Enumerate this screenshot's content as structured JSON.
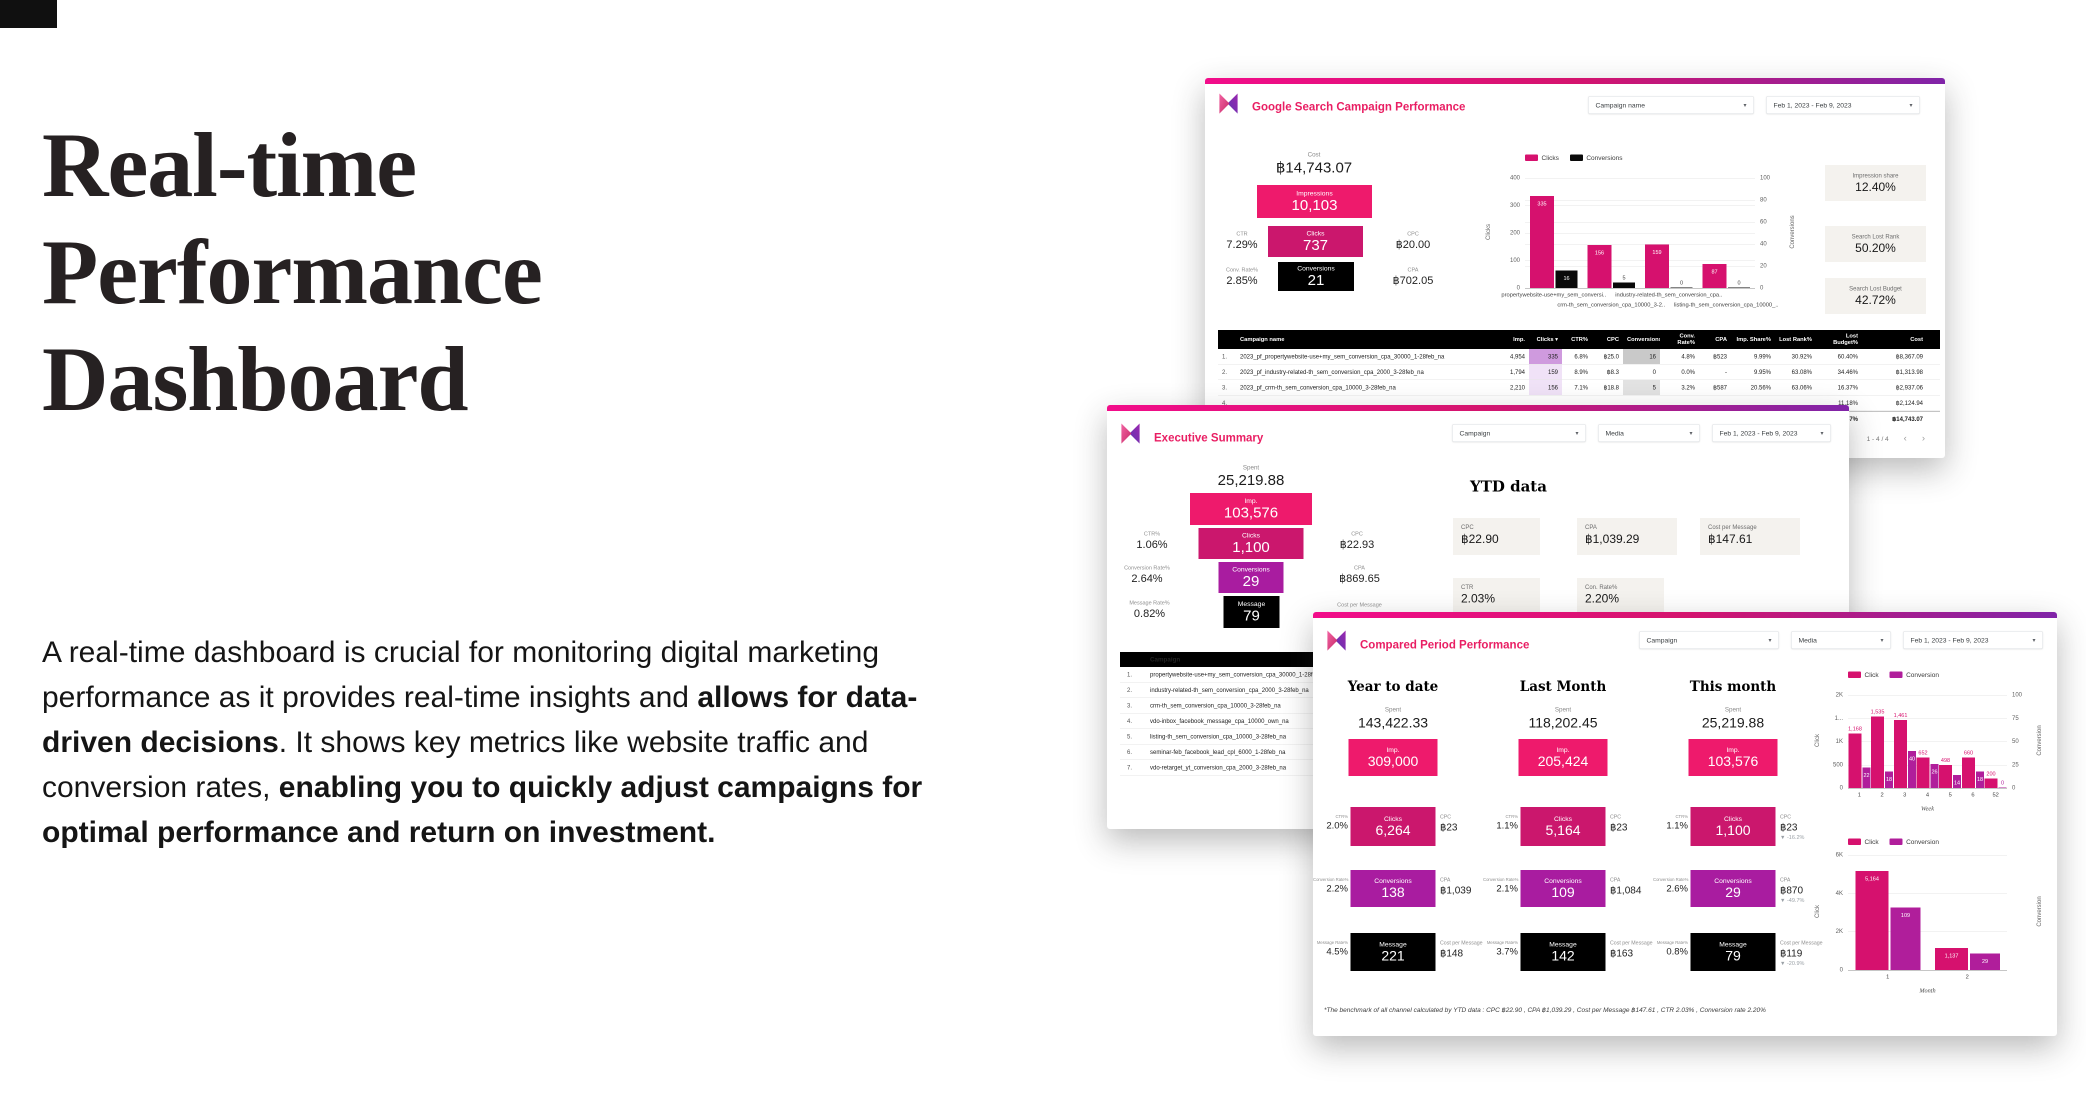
{
  "page": {
    "title_lines": [
      "Real-time",
      "Performance",
      "Dashboard"
    ],
    "paragraph_segments": [
      {
        "text": "A real-time dashboard is crucial for monitoring digital marketing performance as it provides real-time insights and ",
        "bold": false
      },
      {
        "text": "allows for data-driven decisions",
        "bold": true
      },
      {
        "text": ". It shows key metrics like website traffic and conversion rates, ",
        "bold": false
      },
      {
        "text": "enabling you to quickly adjust campaigns for optimal performance and return on investment.",
        "bold": true
      }
    ]
  },
  "icons": {
    "chevron_down": "▾",
    "page_prev": "‹",
    "page_next": "›"
  },
  "colors": {
    "accent_pink": "#e91e63",
    "imp_box": "#ee1a6c",
    "clicks_box": "#cb176d",
    "conv_box": "#a91ca0",
    "msg_box": "#000000",
    "bar_click": "#d6116e",
    "bar_conv": "#b01e9b",
    "scorecard_bg": "#f4f2ee",
    "topbar_gradient": [
      "#f20d8a",
      "#d4146e",
      "#8024a8"
    ]
  },
  "dashboard1": {
    "title": "Google Search Campaign Performance",
    "filters": [
      "Campaign name",
      "Feb 1, 2023 - Feb 9, 2023"
    ],
    "funnel": {
      "cost_label": "Cost",
      "cost": "฿14,743.07",
      "impressions_label": "Impressions",
      "impressions": "10,103",
      "ctr_label": "CTR",
      "ctr": "7.29%",
      "clicks_label": "Clicks",
      "clicks": "737",
      "cpc_label": "CPC",
      "cpc": "฿20.00",
      "conv_rate_label": "Conv. Rate%",
      "conv_rate": "2.85%",
      "conversions_label": "Conversions",
      "conversions": "21",
      "cpa_label": "CPA",
      "cpa": "฿702.05"
    },
    "scorecards": [
      {
        "label": "Impression share",
        "value": "12.40%"
      },
      {
        "label": "Search Lost Rank",
        "value": "50.20%"
      },
      {
        "label": "Search Lost Budget",
        "value": "42.72%"
      }
    ],
    "table": {
      "columns": [
        "Campaign name",
        "Imp.",
        "Clicks ▾",
        "CTR%",
        "CPC",
        "Conversions",
        "Conv. Rate%",
        "CPA",
        "Imp. Share%",
        "Lost Rank%",
        "Lost Budget%",
        "Cost"
      ],
      "rows": [
        [
          "1.",
          "2023_pf_propertywebsite-use+my_sem_conversion_cpa_30000_1-28feb_na",
          "4,954",
          "335",
          "6.8%",
          "฿25.0",
          "16",
          "4.8%",
          "฿523",
          "9.99%",
          "30.92%",
          "60.40%",
          "฿8,367.09"
        ],
        [
          "2.",
          "2023_pf_industry-related-th_sem_conversion_cpa_2000_3-28feb_na",
          "1,794",
          "159",
          "8.9%",
          "฿8.3",
          "0",
          "0.0%",
          "-",
          "9.95%",
          "63.08%",
          "34.46%",
          "฿1,313.98"
        ],
        [
          "3.",
          "2023_pf_crm-th_sem_conversion_cpa_10000_3-28feb_na",
          "2,210",
          "156",
          "7.1%",
          "฿18.8",
          "5",
          "3.2%",
          "฿587",
          "20.56%",
          "63.06%",
          "16.37%",
          "฿2,937.06"
        ],
        [
          "4.",
          "",
          "",
          "",
          "",
          "",
          "",
          "",
          "",
          "",
          "",
          "11.18%",
          "฿2,124.94"
        ]
      ],
      "clicks_heat": [
        "#cf9ade",
        "#f0e2f7",
        "#f0e2f7",
        ""
      ],
      "conv_heat": [
        "#c9c9c9",
        "",
        "#e2e2e2",
        ""
      ],
      "total_row": [
        "",
        "",
        "",
        "",
        "",
        "",
        "",
        "",
        "",
        "",
        "",
        "46.57%",
        "฿14,743.07"
      ],
      "pagination": "1 - 4 / 4"
    }
  },
  "dashboard2": {
    "title": "Executive Summary",
    "filters": [
      "Campaign",
      "Media",
      "Feb 1, 2023 - Feb 9, 2023"
    ],
    "funnel": {
      "spent_label": "Spent",
      "spent": "25,219.88",
      "imp_label": "Imp.",
      "imp": "103,576",
      "ctr_label": "CTR%",
      "ctr": "1.06%",
      "clicks_label": "Clicks",
      "clicks": "1,100",
      "cpc_label": "CPC",
      "cpc": "฿22.93",
      "conv_rate_label": "Conversion Rate%",
      "conv_rate": "2.64%",
      "conversions_label": "Conversions",
      "conversions": "29",
      "cpa_label": "CPA",
      "cpa": "฿869.65",
      "msg_rate_label": "Message Rate%",
      "msg_rate": "0.82%",
      "message_label": "Message",
      "message": "79",
      "cost_per_msg_label": "Cost per Message"
    },
    "ytd": {
      "heading": "YTD data",
      "cards": [
        {
          "label": "CPC",
          "value": "฿22.90"
        },
        {
          "label": "CPA",
          "value": "฿1,039.29"
        },
        {
          "label": "Cost per Message",
          "value": "฿147.61"
        },
        {
          "label": "CTR",
          "value": "2.03%"
        },
        {
          "label": "Con. Rate%",
          "value": "2.20%"
        }
      ]
    },
    "campaign_table": {
      "header": "Campaign",
      "rows": [
        "propertywebsite-use+my_sem_conversion_cpa_30000_1-28feb_na",
        "industry-related-th_sem_conversion_cpa_2000_3-28feb_na",
        "crm-th_sem_conversion_cpa_10000_3-28feb_na",
        "vdo-inbox_facebook_message_cpa_10000_own_na",
        "listing-th_sem_conversion_cpa_10000_3-28feb_na",
        "seminar-feb_facebook_lead_cpl_6000_1-28feb_na",
        "vdo-retarget_yt_conversion_cpa_2000_3-28feb_na"
      ]
    }
  },
  "dashboard3": {
    "title": "Compared Period Performance",
    "filters": [
      "Campaign",
      "Media",
      "Feb 1, 2023 - Feb 9, 2023"
    ],
    "labels": {
      "spent": "Spent",
      "imp": "Imp.",
      "clicks": "Clicks",
      "conversions": "Conversions",
      "message": "Message",
      "ctr": "CTR%",
      "cpc": "CPC",
      "conv_rate": "Conversion Rate%",
      "cpa": "CPA",
      "msg_rate": "Message Rate%",
      "cost_per_msg": "Cost per Message"
    },
    "periods": [
      {
        "title": "Year to date",
        "spent": "143,422.33",
        "imp": "309,000",
        "ctr": "2.0%",
        "clicks": "6,264",
        "cpc": "฿23",
        "conv_rate": "2.2%",
        "conversions": "138",
        "cpa": "฿1,039",
        "msg_rate": "4.5%",
        "message": "221",
        "cost_per_msg": "฿148"
      },
      {
        "title": "Last Month",
        "spent": "118,202.45",
        "imp": "205,424",
        "ctr": "1.1%",
        "clicks": "5,164",
        "cpc": "฿23",
        "conv_rate": "2.1%",
        "conversions": "109",
        "cpa": "฿1,084",
        "msg_rate": "3.7%",
        "message": "142",
        "cost_per_msg": "฿163"
      },
      {
        "title": "This month",
        "spent": "25,219.88",
        "imp": "103,576",
        "ctr": "1.1%",
        "clicks": "1,100",
        "cpc": "฿23",
        "cpc_delta": "▼ -16.2%",
        "conv_rate": "2.6%",
        "conversions": "29",
        "cpa": "฿870",
        "cpa_delta": "▼ -49.7%",
        "msg_rate": "0.8%",
        "message": "79",
        "cost_per_msg": "฿119",
        "cpm_delta": "▼ -20.9%"
      }
    ],
    "footnote": "*The benchmark of all channel calculated by YTD data : CPC ฿22.90 , CPA ฿1,039.29 , Cost per Message ฿147.61 , CTR 2.03% , Conversion rate 2.20%"
  },
  "chart_data": [
    {
      "type": "bar",
      "title": "",
      "categories": [
        "propertywebsite-use+my_sem_conversi..",
        "crm-th_sem_conversion_cpa_10000_3-2..",
        "industry-related-th_sem_conversion_cpa..",
        "listing-th_sem_conversion_cpa_10000_.."
      ],
      "series": [
        {
          "name": "Clicks",
          "values": [
            335,
            156,
            159,
            87
          ]
        },
        {
          "name": "Conversions",
          "values": [
            16,
            5,
            0,
            0
          ]
        }
      ],
      "bar_labels": [
        [
          "335",
          "156",
          "159",
          "87"
        ],
        [
          "16",
          "5",
          "0",
          "0"
        ]
      ],
      "left_axis": {
        "title": "Clicks",
        "max": 400,
        "tick_values": [
          0,
          100,
          200,
          300,
          400
        ],
        "tick_labels": [
          "0",
          "100",
          "200",
          "300",
          "400"
        ]
      },
      "right_axis": {
        "title": "Conversions",
        "max": 100,
        "tick_values": [
          0,
          20,
          40,
          60,
          80,
          100
        ],
        "tick_labels": [
          "0",
          "20",
          "40",
          "60",
          "80",
          "100"
        ]
      },
      "xlabel": "",
      "legend_position": "top"
    },
    {
      "type": "bar",
      "title": "",
      "categories": [
        "1",
        "2",
        "3",
        "4",
        "5",
        "6",
        "52"
      ],
      "series": [
        {
          "name": "Click",
          "values": [
            1168,
            1535,
            1461,
            652,
            498,
            660,
            200
          ]
        },
        {
          "name": "Conversion",
          "values": [
            22,
            18,
            40,
            26,
            14,
            18,
            0
          ]
        }
      ],
      "bar_labels": [
        [
          "1,168",
          "1,535",
          "1,461",
          "652",
          "498",
          "660",
          "200"
        ],
        [
          "22",
          "18",
          "40",
          "26",
          "14",
          "18",
          "0"
        ]
      ],
      "left_axis": {
        "title": "Click",
        "max": 2000,
        "tick_values": [
          0,
          500,
          1000,
          1500,
          2000
        ],
        "tick_labels": [
          "0",
          "500",
          "1K",
          "1...",
          "2K"
        ]
      },
      "right_axis": {
        "title": "Conversion",
        "max": 100,
        "tick_values": [
          0,
          25,
          50,
          75,
          100
        ],
        "tick_labels": [
          "0",
          "25",
          "50",
          "75",
          "100"
        ]
      },
      "xlabel": "Week",
      "legend_position": "top"
    },
    {
      "type": "bar",
      "title": "",
      "categories": [
        "1",
        "2"
      ],
      "series": [
        {
          "name": "Click",
          "values": [
            5164,
            1137
          ]
        },
        {
          "name": "Conversion",
          "values": [
            109,
            29
          ]
        }
      ],
      "bar_labels": [
        [
          "5,164",
          "1,137"
        ],
        [
          "109",
          "29"
        ]
      ],
      "left_axis": {
        "title": "Click",
        "max": 6000,
        "tick_values": [
          0,
          2000,
          4000,
          6000
        ],
        "tick_labels": [
          "0",
          "2K",
          "4K",
          "6K"
        ]
      },
      "right_axis": {
        "title": "Conversion",
        "max": 200,
        "tick_values": [],
        "tick_labels": []
      },
      "xlabel": "Month",
      "legend_position": "top"
    }
  ]
}
